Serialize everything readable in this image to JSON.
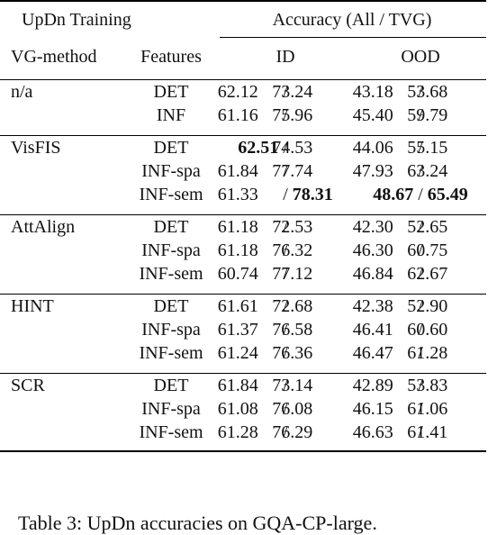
{
  "header": {
    "group_left": "UpDn Training",
    "group_right": "Accuracy (All / TVG)",
    "col_method": "VG-method",
    "col_features": "Features",
    "col_id": "ID",
    "col_ood": "OOD"
  },
  "groups": [
    {
      "method": "n/a",
      "rows": [
        {
          "features": "DET",
          "id_all": "62.12",
          "id_tvg": "73.24",
          "ood_all": "43.18",
          "ood_tvg": "53.68"
        },
        {
          "features": "INF",
          "id_all": "61.16",
          "id_tvg": "75.96",
          "ood_all": "45.40",
          "ood_tvg": "59.79"
        }
      ]
    },
    {
      "method": "VisFIS",
      "rows": [
        {
          "features": "DET",
          "id_all": "62.51",
          "id_tvg": "74.53",
          "ood_all": "44.06",
          "ood_tvg": "55.15",
          "bold": [
            "id_all"
          ]
        },
        {
          "features": "INF-spa",
          "id_all": "61.84",
          "id_tvg": "77.74",
          "ood_all": "47.93",
          "ood_tvg": "63.24"
        },
        {
          "features": "INF-sem",
          "id_all": "61.33",
          "id_tvg": "78.31",
          "ood_all": "48.67",
          "ood_tvg": "65.49",
          "bold": [
            "id_tvg",
            "ood_all",
            "ood_tvg"
          ]
        }
      ]
    },
    {
      "method": "AttAlign",
      "rows": [
        {
          "features": "DET",
          "id_all": "61.18",
          "id_tvg": "72.53",
          "ood_all": "42.30",
          "ood_tvg": "52.65"
        },
        {
          "features": "INF-spa",
          "id_all": "61.18",
          "id_tvg": "76.32",
          "ood_all": "46.30",
          "ood_tvg": "60.75"
        },
        {
          "features": "INF-sem",
          "id_all": "60.74",
          "id_tvg": "77.12",
          "ood_all": "46.84",
          "ood_tvg": "62.67"
        }
      ]
    },
    {
      "method": "HINT",
      "rows": [
        {
          "features": "DET",
          "id_all": "61.61",
          "id_tvg": "72.68",
          "ood_all": "42.38",
          "ood_tvg": "52.90"
        },
        {
          "features": "INF-spa",
          "id_all": "61.37",
          "id_tvg": "76.58",
          "ood_all": "46.41",
          "ood_tvg": "60.60"
        },
        {
          "features": "INF-sem",
          "id_all": "61.24",
          "id_tvg": "76.36",
          "ood_all": "46.47",
          "ood_tvg": "61.28"
        }
      ]
    },
    {
      "method": "SCR",
      "rows": [
        {
          "features": "DET",
          "id_all": "61.84",
          "id_tvg": "73.14",
          "ood_all": "42.89",
          "ood_tvg": "53.83"
        },
        {
          "features": "INF-spa",
          "id_all": "61.08",
          "id_tvg": "76.08",
          "ood_all": "46.15",
          "ood_tvg": "61.06"
        },
        {
          "features": "INF-sem",
          "id_all": "61.28",
          "id_tvg": "76.29",
          "ood_all": "46.63",
          "ood_tvg": "61.41"
        }
      ]
    }
  ],
  "caption": "Table 3: UpDn accuracies on GQA-CP-large."
}
